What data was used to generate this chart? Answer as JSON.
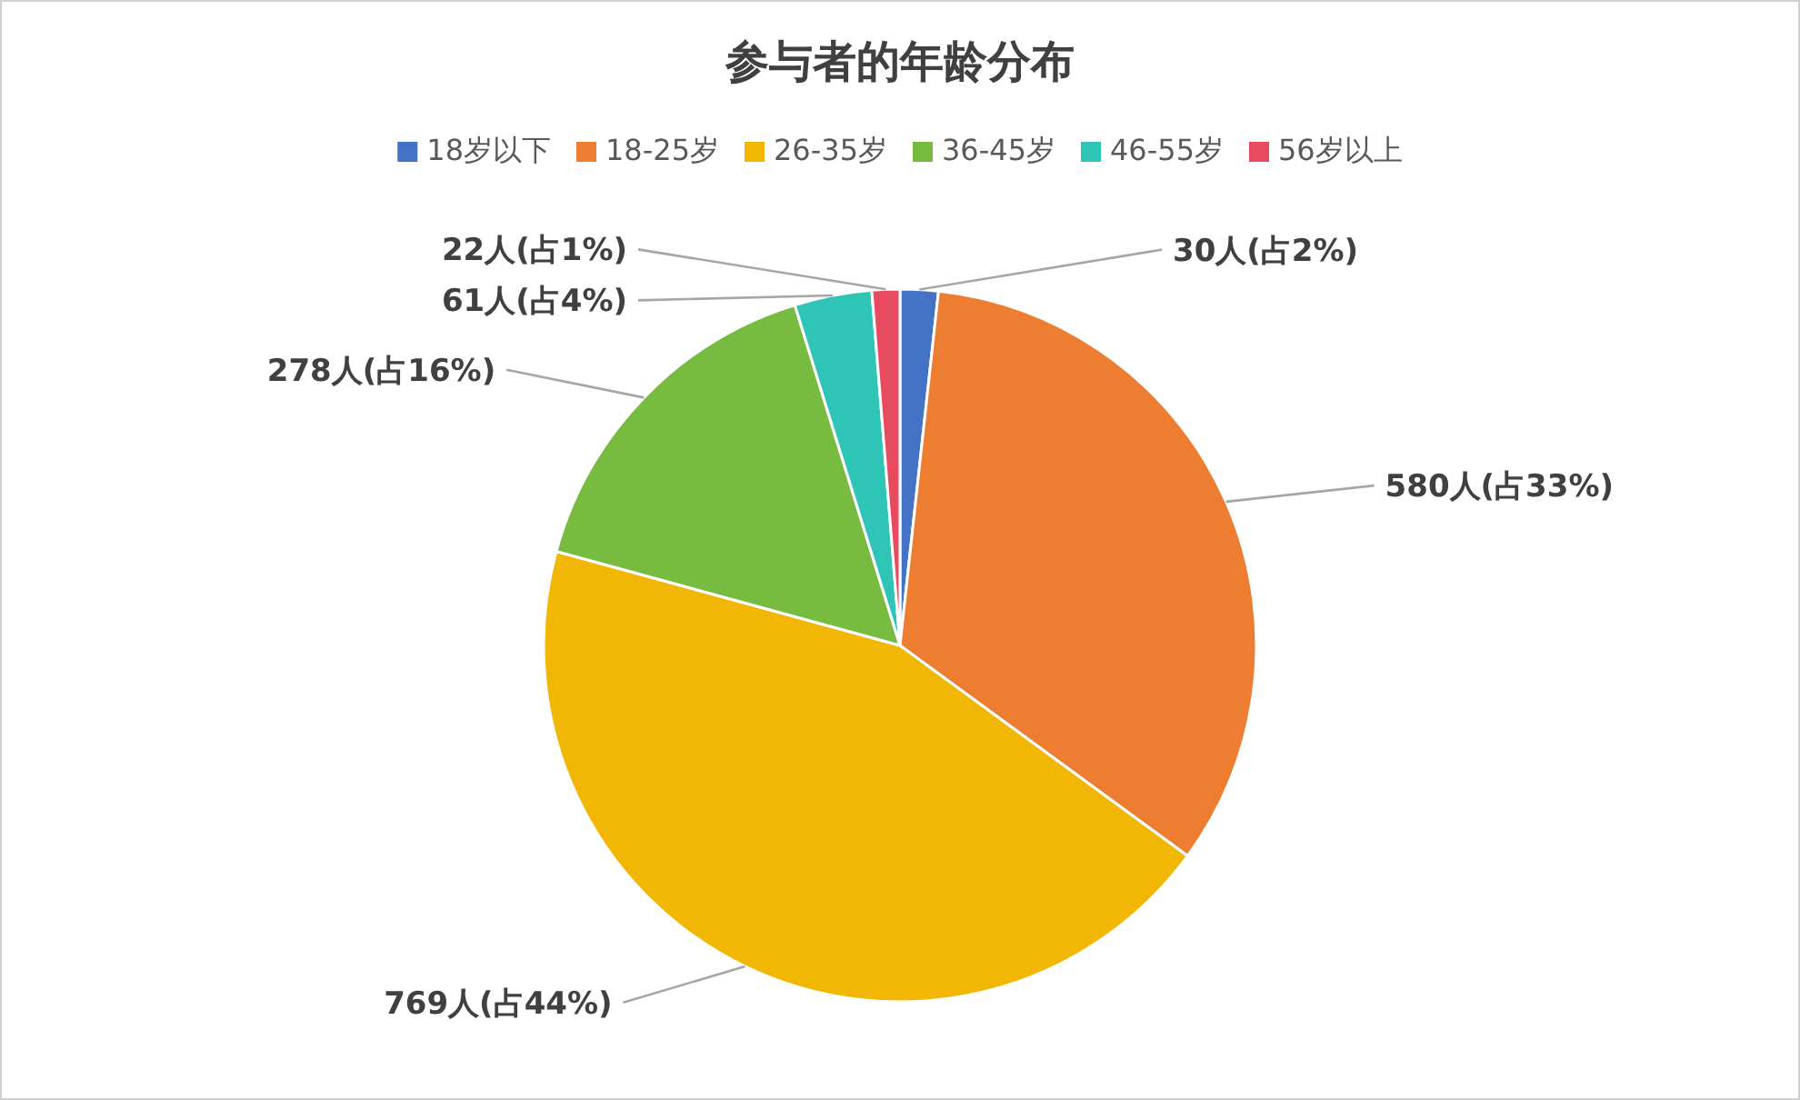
{
  "chart_data": {
    "type": "pie",
    "title": "参与者的年龄分布",
    "categories": [
      "18岁以下",
      "18-25岁",
      "26-35岁",
      "36-45岁",
      "46-55岁",
      "56岁以上"
    ],
    "values": [
      30,
      580,
      769,
      278,
      61,
      22
    ],
    "colors": [
      "#4472c4",
      "#ed7d31",
      "#f2b705",
      "#77bc41",
      "#2ec4b6",
      "#e84a5f"
    ],
    "value_labels": [
      "30人(占2%)",
      "580人(占33%)",
      "769人(占44%)",
      "278人(占16%)",
      "61人(占4%)",
      "22人(占1%)"
    ],
    "legend": "top"
  }
}
